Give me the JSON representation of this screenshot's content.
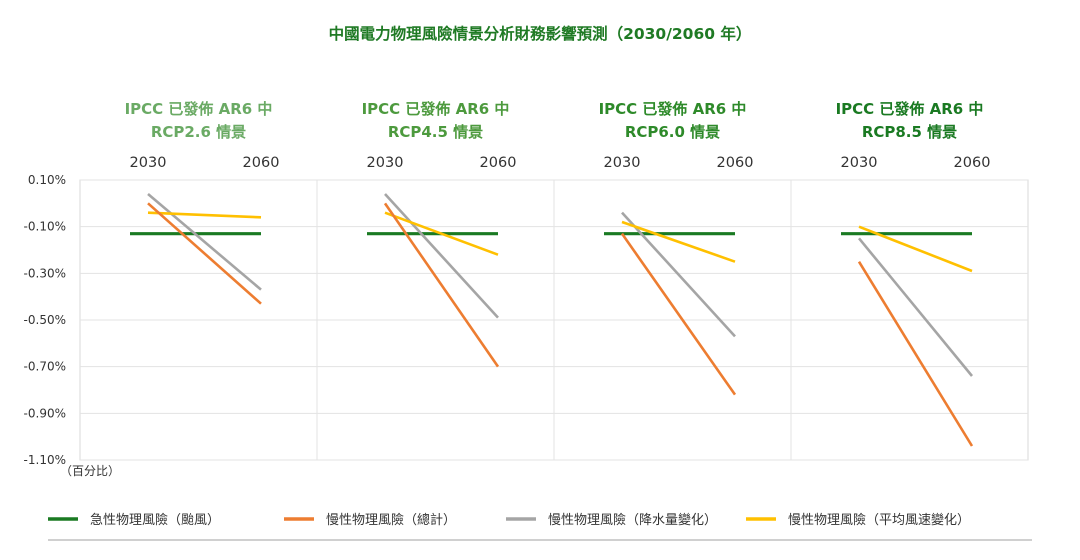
{
  "chart_data": {
    "type": "line",
    "title": "中國電力物理風險情景分析財務影響預測（2030/2060 年）",
    "y_unit_label": "（百分比）",
    "ylim": [
      -1.1,
      0.1
    ],
    "yticks": [
      "0.10%",
      "-0.10%",
      "-0.30%",
      "-0.50%",
      "-0.70%",
      "-0.90%",
      "-1.10%"
    ],
    "ytick_values": [
      0.1,
      -0.1,
      -0.3,
      -0.5,
      -0.7,
      -0.9,
      -1.1
    ],
    "x": [
      "2030",
      "2060"
    ],
    "grid": true,
    "legend_position": "bottom",
    "colors": {
      "acute_typhoon": "#1a7a22",
      "chronic_total": "#ed7d31",
      "chronic_precip": "#a5a5a5",
      "chronic_wind": "#ffc000"
    },
    "panels": [
      {
        "title_line1": "IPCC 已發佈 AR6 中",
        "title_line2": "RCP2.6 情景",
        "title_color": "#6aaa64",
        "series": [
          {
            "key": "acute_typhoon",
            "values": [
              -0.13,
              -0.13
            ]
          },
          {
            "key": "chronic_total",
            "values": [
              0.0,
              -0.43
            ]
          },
          {
            "key": "chronic_precip",
            "values": [
              0.04,
              -0.37
            ]
          },
          {
            "key": "chronic_wind",
            "values": [
              -0.04,
              -0.06
            ]
          }
        ]
      },
      {
        "title_line1": "IPCC 已發佈 AR6 中",
        "title_line2": "RCP4.5 情景",
        "title_color": "#4d9a3e",
        "series": [
          {
            "key": "acute_typhoon",
            "values": [
              -0.13,
              -0.13
            ]
          },
          {
            "key": "chronic_total",
            "values": [
              0.0,
              -0.7
            ]
          },
          {
            "key": "chronic_precip",
            "values": [
              0.04,
              -0.49
            ]
          },
          {
            "key": "chronic_wind",
            "values": [
              -0.04,
              -0.22
            ]
          }
        ]
      },
      {
        "title_line1": "IPCC 已發佈 AR6 中",
        "title_line2": "RCP6.0 情景",
        "title_color": "#2e8a2a",
        "series": [
          {
            "key": "acute_typhoon",
            "values": [
              -0.13,
              -0.13
            ]
          },
          {
            "key": "chronic_total",
            "values": [
              -0.13,
              -0.82
            ]
          },
          {
            "key": "chronic_precip",
            "values": [
              -0.04,
              -0.57
            ]
          },
          {
            "key": "chronic_wind",
            "values": [
              -0.08,
              -0.25
            ]
          }
        ]
      },
      {
        "title_line1": "IPCC 已發佈 AR6 中",
        "title_line2": "RCP8.5 情景",
        "title_color": "#1a7a22",
        "series": [
          {
            "key": "acute_typhoon",
            "values": [
              -0.13,
              -0.13
            ]
          },
          {
            "key": "chronic_total",
            "values": [
              -0.25,
              -1.04
            ]
          },
          {
            "key": "chronic_precip",
            "values": [
              -0.15,
              -0.74
            ]
          },
          {
            "key": "chronic_wind",
            "values": [
              -0.1,
              -0.29
            ]
          }
        ]
      }
    ],
    "legend": [
      {
        "key": "acute_typhoon",
        "label": "急性物理風險（颱風）"
      },
      {
        "key": "chronic_total",
        "label": "慢性物理風險（總計）"
      },
      {
        "key": "chronic_precip",
        "label": "慢性物理風險（降水量變化）"
      },
      {
        "key": "chronic_wind",
        "label": "慢性物理風險（平均風速變化）"
      }
    ]
  }
}
